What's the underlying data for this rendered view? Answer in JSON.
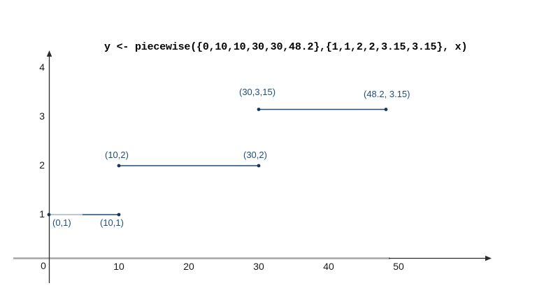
{
  "chart_data": {
    "type": "line",
    "subtype": "piecewise-step-segments",
    "title": "y <- piecewise({0,10,10,30,30,48.2},{1,1,2,2,3.15,3.15}, x)",
    "xlabel": "",
    "ylabel": "",
    "xlim": [
      0,
      63
    ],
    "ylim": [
      0,
      4.3
    ],
    "grid": false,
    "legend": false,
    "x_ticks": [
      0,
      10,
      20,
      30,
      40,
      50
    ],
    "y_ticks": [
      1,
      2,
      3,
      4
    ],
    "series": [
      {
        "name": "segment-1",
        "points": [
          [
            0,
            1
          ],
          [
            10,
            1
          ]
        ],
        "point_labels": [
          "(0,1)",
          "(10,1)"
        ],
        "label_side": "below"
      },
      {
        "name": "segment-2",
        "points": [
          [
            10,
            2
          ],
          [
            30,
            2
          ]
        ],
        "point_labels": [
          "(10,2)",
          "(30,2)"
        ],
        "label_side": "above"
      },
      {
        "name": "segment-3",
        "points": [
          [
            30,
            3.15
          ],
          [
            48.2,
            3.15
          ]
        ],
        "point_labels": [
          "(30,3,15)",
          "(48.2, 3.15)"
        ],
        "label_side": "above"
      }
    ],
    "colors": {
      "segment_line": "#1f4e79",
      "segment_light_overlap": "#b9c7d8",
      "point_dot": "#17375d",
      "point_label": "#1f4e79",
      "axis_gray": "#a6a6a6",
      "axis_black": "#2b2b2b",
      "tick_text": "#1a1a1a",
      "title_text": "#000000"
    }
  }
}
